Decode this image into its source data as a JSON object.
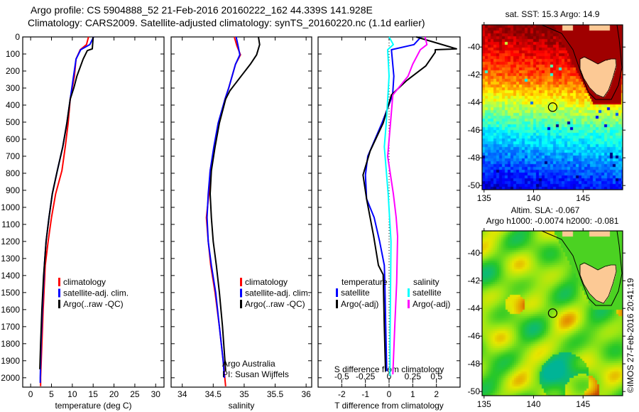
{
  "title": {
    "line1": "Argo profile: CS 5904888_52 21-Feb-2016 20160222_162 44.339S 141.928E",
    "line2": "Climatology: CARS2009. Satellite-adjusted climatology: synTS_20160220.nc (1.1d earlier)"
  },
  "colors": {
    "climatology": "#ff0000",
    "satellite": "#0000ff",
    "argo": "#000000",
    "sal_satellite": "#00ffff",
    "sal_argo": "#ff00ff"
  },
  "chart_data": [
    {
      "id": "temperature",
      "type": "line",
      "xlabel": "temperature (deg C)",
      "xlim": [
        -1.9,
        32
      ],
      "ylim": [
        0,
        2055
      ],
      "xticks": [
        0,
        5,
        10,
        15,
        20,
        25,
        30
      ],
      "yticks": [
        0,
        100,
        200,
        300,
        400,
        500,
        600,
        700,
        800,
        900,
        1000,
        1100,
        1200,
        1300,
        1400,
        1500,
        1600,
        1700,
        1800,
        1900,
        2000
      ],
      "legend": [
        "climatology",
        "satellite-adj. clim.",
        "Argo(..raw -QC)"
      ],
      "series": [
        {
          "name": "climatology",
          "color": "#ff0000",
          "depth": [
            0,
            45,
            75,
            130,
            230,
            365,
            505,
            645,
            785,
            920,
            1060,
            1200,
            1340,
            1400,
            1600,
            1800,
            2000,
            2050
          ],
          "values": [
            13.9,
            13.4,
            11.9,
            10.9,
            10.5,
            9.5,
            9.0,
            8.3,
            7.5,
            6.0,
            5.0,
            4.2,
            3.5,
            3.4,
            3.0,
            2.7,
            2.4,
            2.4
          ]
        },
        {
          "name": "satellite-adj. clim.",
          "color": "#0000ff",
          "depth": [
            0,
            45,
            75,
            130,
            230,
            365,
            505,
            645,
            785,
            920,
            1060,
            1200,
            1340,
            1400,
            1600,
            1800,
            2000,
            2030
          ],
          "values": [
            15.1,
            14.2,
            12.0,
            10.9,
            10.3,
            9.5,
            8.7,
            7.7,
            6.4,
            5.2,
            4.4,
            3.7,
            3.3,
            3.2,
            2.8,
            2.5,
            2.3,
            2.3
          ]
        },
        {
          "name": "Argo(..raw -QC)",
          "color": "#000000",
          "depth": [
            0,
            70,
            80,
            130,
            230,
            296,
            365,
            505,
            645,
            785,
            920,
            1060,
            1200,
            1340,
            1400,
            1600,
            1800,
            1950
          ],
          "values": [
            15.0,
            14.8,
            13.6,
            12.6,
            11.1,
            10.4,
            9.5,
            8.7,
            7.7,
            6.4,
            5.2,
            4.4,
            3.7,
            3.3,
            3.1,
            2.7,
            2.4,
            2.2
          ]
        }
      ]
    },
    {
      "id": "salinity",
      "type": "line",
      "xlabel": "salinity",
      "xlim": [
        33.82,
        36.09
      ],
      "ylim": [
        0,
        2055
      ],
      "xticks": [
        34,
        34.5,
        35,
        35.5,
        36
      ],
      "legend": [
        "climatology",
        "satellite-adj. clim.",
        "Argo(..raw -QC)"
      ],
      "annotation": [
        "Argo Australia",
        "PI: Susan Wijffels"
      ],
      "series": [
        {
          "name": "climatology",
          "color": "#ff0000",
          "depth": [
            0,
            50,
            105,
            160,
            300,
            365,
            505,
            645,
            785,
            920,
            1060,
            1200,
            1340,
            1500,
            1700,
            1900,
            2050
          ],
          "values": [
            34.84,
            34.88,
            34.94,
            34.86,
            34.75,
            34.69,
            34.59,
            34.52,
            34.45,
            34.43,
            34.39,
            34.42,
            34.46,
            34.53,
            34.6,
            34.66,
            34.7
          ]
        },
        {
          "name": "satellite-adj. clim.",
          "color": "#0000ff",
          "depth": [
            0,
            50,
            105,
            160,
            300,
            365,
            505,
            645,
            785,
            920,
            1060,
            1200,
            1340,
            1500,
            1700,
            1900,
            2000
          ],
          "values": [
            34.87,
            34.9,
            34.93,
            34.86,
            34.75,
            34.69,
            34.58,
            34.51,
            34.45,
            34.42,
            34.4,
            34.42,
            34.47,
            34.54,
            34.6,
            34.66,
            34.68
          ]
        },
        {
          "name": "Argo(..raw -QC)",
          "color": "#000000",
          "depth": [
            0,
            45,
            105,
            160,
            230,
            315,
            365,
            505,
            645,
            785,
            920,
            1060,
            1200,
            1340,
            1500,
            1700,
            1960
          ],
          "values": [
            35.23,
            35.25,
            35.2,
            35.1,
            34.95,
            34.77,
            34.7,
            34.6,
            34.53,
            34.47,
            34.45,
            34.47,
            34.5,
            34.55,
            34.6,
            34.65,
            34.7
          ]
        }
      ]
    },
    {
      "id": "difference",
      "type": "line",
      "xlabel": "T difference from climatology",
      "x2label": "S difference from climatology",
      "xlim": [
        -3,
        3
      ],
      "ylim": [
        0,
        2055
      ],
      "xticks": [
        -2,
        -1,
        0,
        1,
        2
      ],
      "x2ticks": [
        -0.5,
        -0.25,
        0,
        0.25,
        0.5
      ],
      "x2ticklabels": [
        "-0.5",
        "-0.25",
        "0",
        "0.25",
        "0.5"
      ],
      "legend": {
        "temperature": "temperature",
        "salinity": "salinity",
        "satellite": "satellite",
        "argo": "Argo(-adj)"
      },
      "series": [
        {
          "name": "T satellite",
          "axis": "T",
          "color": "#0000ff",
          "depth": [
            0,
            45,
            75,
            230,
            340,
            505,
            700,
            810,
            950,
            1060,
            1200,
            1340,
            1437,
            1700,
            1962
          ],
          "values": [
            1.35,
            1.05,
            0.1,
            0.2,
            0.15,
            -0.3,
            -0.9,
            -1.0,
            -0.95,
            -0.63,
            -0.4,
            -0.2,
            -0.18,
            -0.14,
            -0.1
          ]
        },
        {
          "name": "T Argo(-adj)",
          "axis": "T",
          "color": "#000000",
          "depth": [
            0,
            70,
            75,
            90,
            170,
            255,
            340,
            505,
            670,
            810,
            950,
            1170,
            1340,
            1395,
            1700,
            1960
          ],
          "values": [
            1.15,
            2.85,
            1.95,
            1.95,
            1.55,
            0.75,
            0.1,
            -0.25,
            -0.8,
            -1.1,
            -0.95,
            -0.65,
            -0.45,
            -0.25,
            -0.2,
            -0.15
          ]
        },
        {
          "name": "S satellite",
          "axis": "S",
          "color": "#00ffff",
          "depth": [
            0,
            45,
            75,
            230,
            505,
            645,
            920,
            1200,
            1500,
            1800,
            1990
          ],
          "values": [
            0.0,
            0.045,
            -0.015,
            0.0,
            -0.03,
            -0.05,
            -0.01,
            0.02,
            0.015,
            0.01,
            0.01
          ]
        },
        {
          "name": "S Argo(-adj)",
          "axis": "S",
          "color": "#ff00ff",
          "depth": [
            0,
            45,
            75,
            160,
            230,
            340,
            505,
            700,
            920,
            1060,
            1170,
            1440,
            1700,
            1980
          ],
          "values": [
            0.38,
            0.4,
            0.33,
            0.25,
            0.2,
            0.04,
            0.015,
            -0.015,
            0.045,
            0.075,
            0.09,
            0.08,
            0.06,
            0.04
          ]
        }
      ]
    },
    {
      "id": "map-sst",
      "type": "heatmap",
      "title": "sat. SST: 15.3 Argo: 14.9",
      "xlim": [
        134.8,
        149
      ],
      "ylim": [
        -50.3,
        -38.4
      ],
      "xticks": [
        135,
        140,
        145
      ],
      "yticks": [
        -40,
        -42,
        -44,
        -46,
        -48,
        -50
      ],
      "argo_position": [
        141.928,
        -44.339
      ]
    },
    {
      "id": "map-sla",
      "type": "heatmap",
      "title_line1": "Altim. SLA: -0.067",
      "title_line2": "Argo h1000: -0.0074 h2000: -0.081",
      "xlim": [
        134.8,
        149
      ],
      "ylim": [
        -50.3,
        -38.4
      ],
      "xticks": [
        135,
        140,
        145
      ],
      "yticks": [
        -40,
        -42,
        -44,
        -46,
        -48,
        -50
      ],
      "argo_position": [
        141.928,
        -44.339
      ],
      "credit": "©IMOS 27-Feb-2016 20:41:19"
    }
  ]
}
